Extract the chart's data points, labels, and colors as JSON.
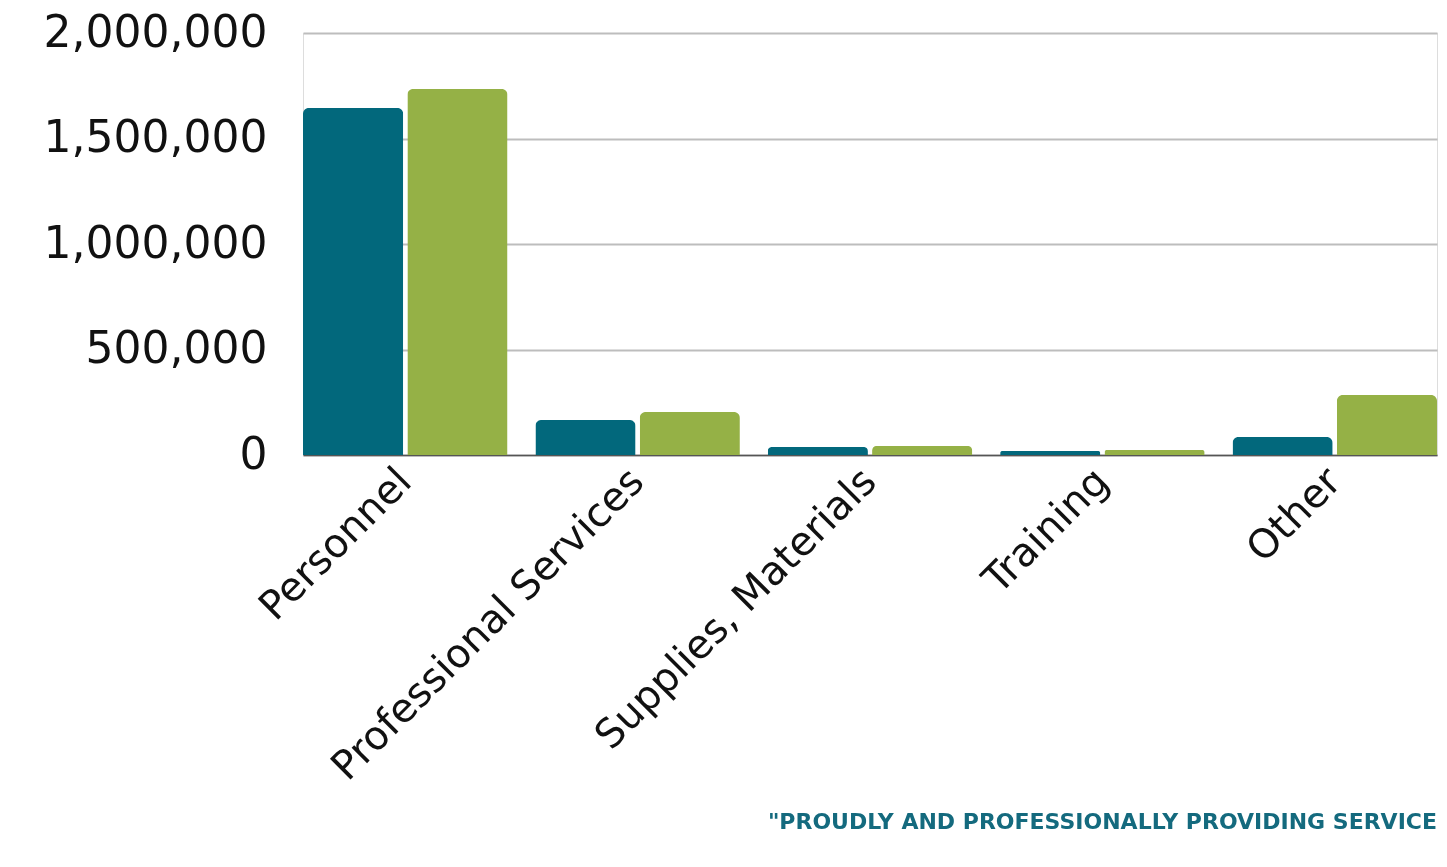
{
  "chart_data": {
    "type": "bar",
    "categories": [
      "Personnel",
      "Professional Services",
      "Supplies, Materials",
      "Training",
      "Other"
    ],
    "series": [
      {
        "color": "#02687c",
        "values": [
          1645000,
          166000,
          38000,
          19000,
          85000
        ]
      },
      {
        "color": "#95b146",
        "values": [
          1735000,
          204000,
          43000,
          24000,
          284000
        ]
      }
    ],
    "ylim": [
      0,
      2000000
    ],
    "yticks": [
      0,
      {
        "value": 500000,
        "label": "500,000"
      },
      {
        "value": 1000000,
        "label": "1,000,000"
      },
      {
        "value": 1500000,
        "label": "1,500,000"
      },
      {
        "value": 2000000,
        "label": "2,000,000"
      }
    ],
    "grid": "y",
    "legend": false,
    "annotations": [
      "\"PROUDLY AND PROFESSIONALLY PROVIDING SERVICE"
    ]
  }
}
